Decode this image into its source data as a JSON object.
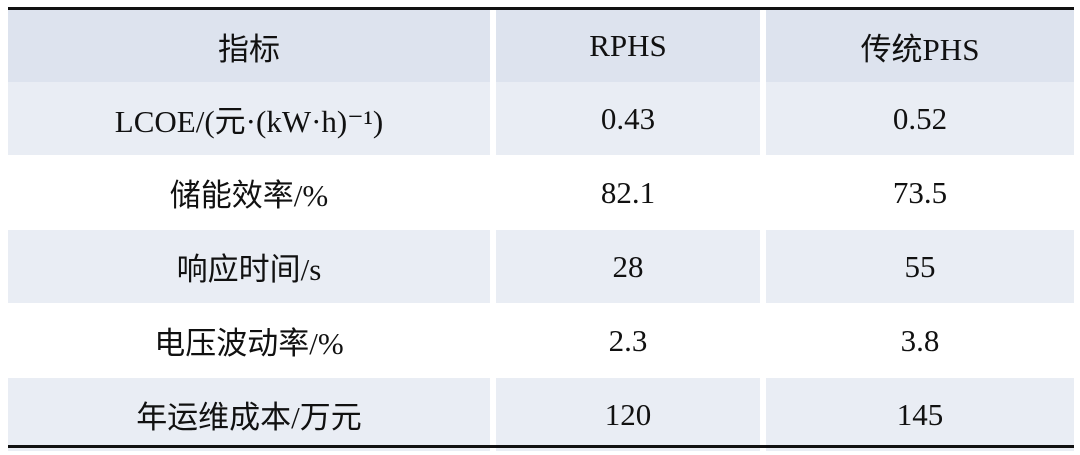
{
  "table": {
    "header": [
      "指标",
      "RPHS",
      "传统PHS"
    ],
    "rows": [
      [
        "LCOE/(元·(kW·h)⁻¹)",
        "0.43",
        "0.52"
      ],
      [
        "储能效率/%",
        "82.1",
        "73.5"
      ],
      [
        "响应时间/s",
        "28",
        "55"
      ],
      [
        "电压波动率/%",
        "2.3",
        "3.8"
      ],
      [
        "年运维成本/万元",
        "120",
        "145"
      ]
    ]
  }
}
